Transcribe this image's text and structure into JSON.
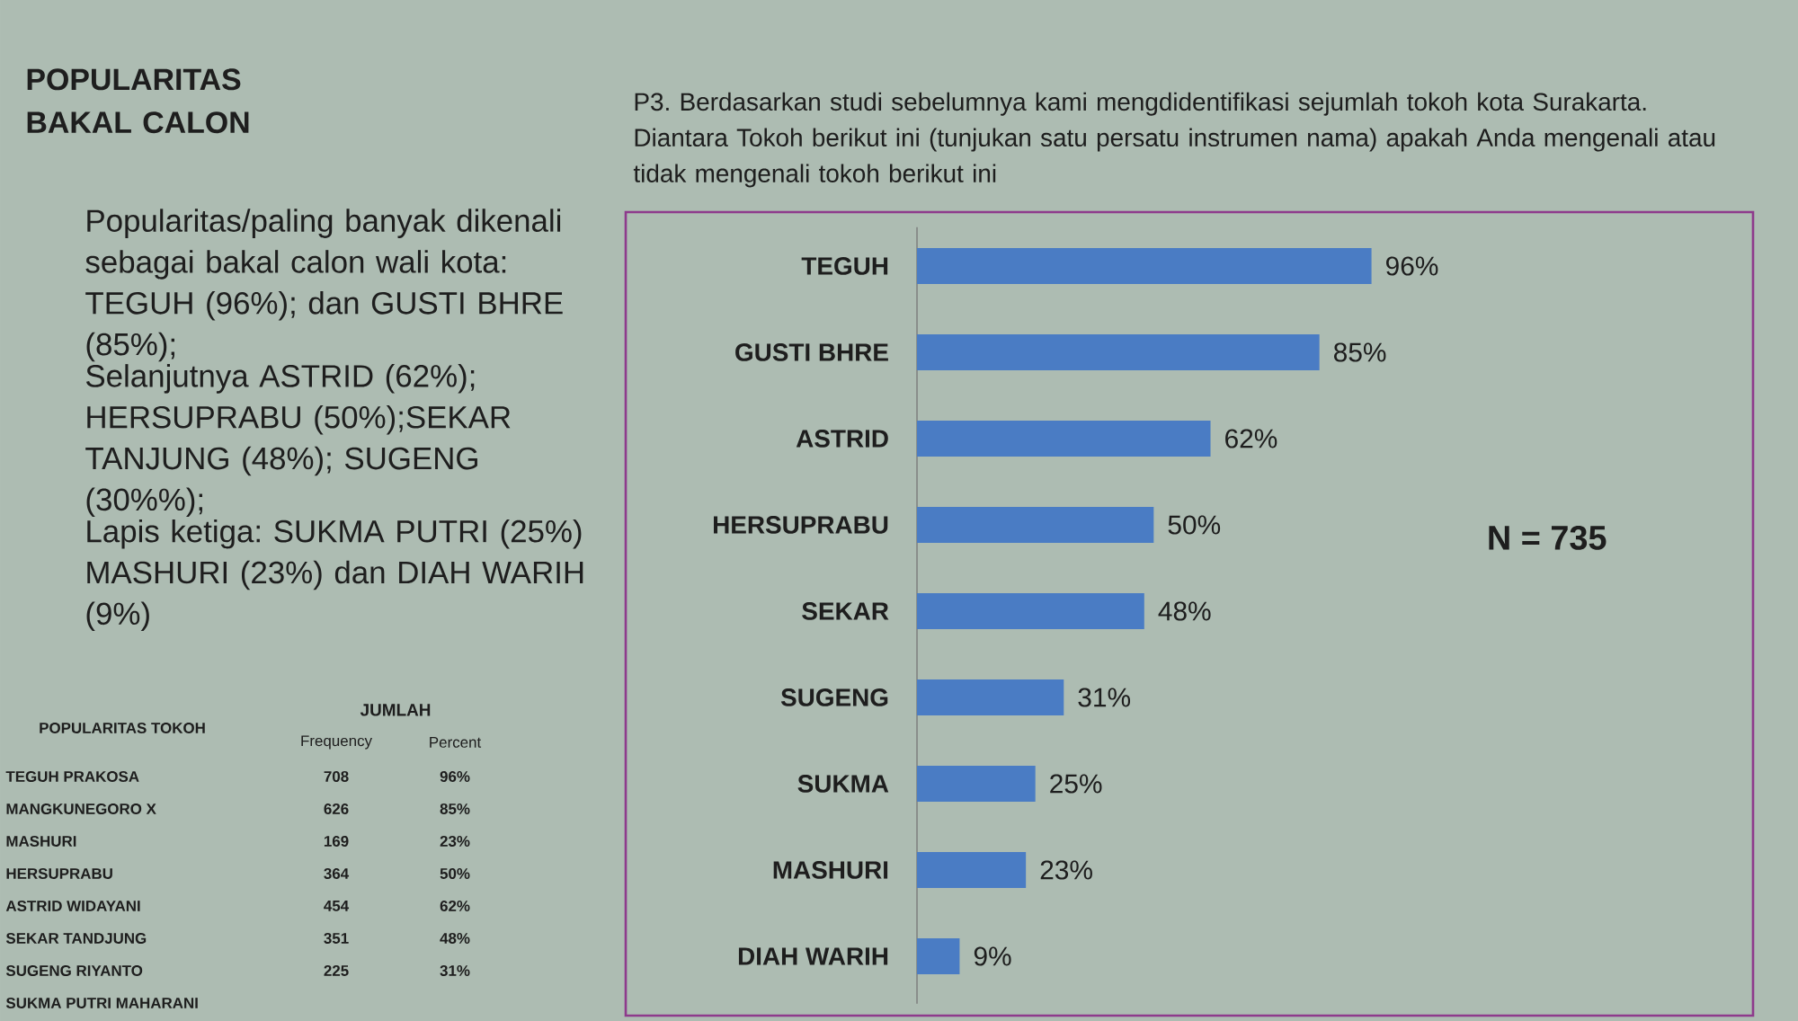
{
  "chart_data": [
    {
      "type": "other",
      "title": "POPULARITAS BAKAL CALON",
      "annotations": [
        "Popularitas/paling banyak dikenali sebagai bakal calon wali kota: TEGUH (96%); dan GUSTI BHRE (85%);",
        "Selanjutnya ASTRID (62%); HERSUPRABU (50%);SEKAR TANJUNG (48%); SUGENG (30%%);",
        "Lapis ketiga: SUKMA PUTRI (25%) MASHURI (23%) dan DIAH WARIH (9%)"
      ]
    },
    {
      "type": "other",
      "ylabel": "POPULARITAS TOKOH",
      "legend_title": "JUMLAH",
      "data_labels": true,
      "categories": [
        "TEGUH PRAKOSA",
        "MANGKUNEGORO X",
        "MASHURI",
        "HERSUPRABU",
        "ASTRID WIDAYANI",
        "SEKAR TANDJUNG",
        "SUGENG RIYANTO",
        "SUKMA PUTRI MAHARANI"
      ],
      "series": [
        {
          "name": "Frequency",
          "values": [
            708,
            626,
            169,
            364,
            454,
            351,
            225,
            null
          ]
        },
        {
          "name": "Percent",
          "values": [
            96,
            85,
            23,
            50,
            62,
            48,
            31,
            null
          ],
          "value_labels": [
            "96%",
            "85%",
            "23%",
            "50%",
            "62%",
            "48%",
            "31%",
            null
          ]
        }
      ]
    },
    {
      "type": "bar",
      "orientation": "horizontal",
      "title": "P3. Berdasarkan studi sebelumnya kami mengdidentifikasi sejumlah tokoh kota Surakarta. Diantara Tokoh berikut ini (tunjukan satu persatu instrumen nama) apakah Anda mengenali atau tidak mengenali tokoh berikut ini",
      "categories": [
        "TEGUH",
        "GUSTI BHRE",
        "ASTRID",
        "HERSUPRABU",
        "SEKAR",
        "SUGENG",
        "SUKMA",
        "MASHURI",
        "DIAH WARIH"
      ],
      "values": [
        96,
        85,
        62,
        50,
        48,
        31,
        25,
        23,
        9
      ],
      "color": "#4a7cc4",
      "value_labels": [
        "96%",
        "85%",
        "62%",
        "50%",
        "48%",
        "31%",
        "25%",
        "23%",
        "9%"
      ],
      "annotations": [
        "N = 735"
      ]
    }
  ]
}
